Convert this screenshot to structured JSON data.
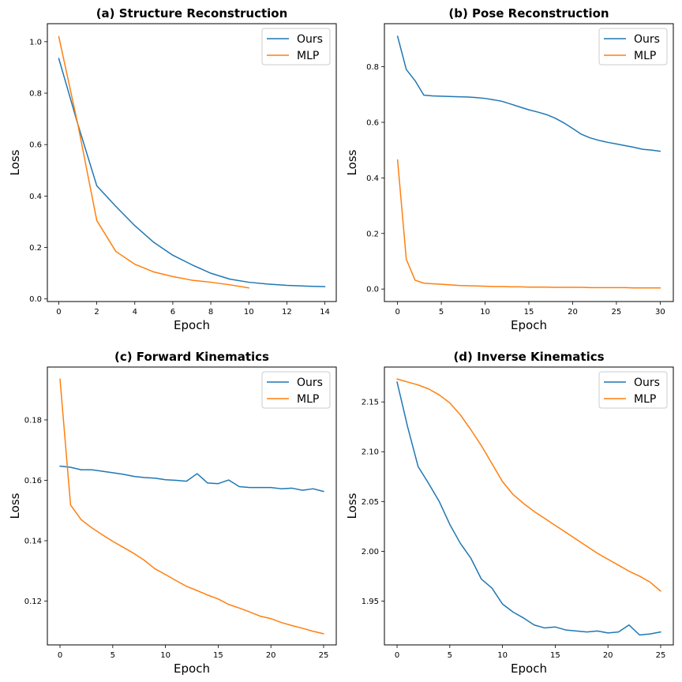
{
  "colors": {
    "ours": "#1f77b4",
    "mlp": "#ff7f0e"
  },
  "chart_data": [
    {
      "type": "line",
      "title": "(a) Structure Reconstruction",
      "xlabel": "Epoch",
      "ylabel": "Loss",
      "xlim": [
        -0.6,
        14.6
      ],
      "ylim": [
        -0.01,
        1.07
      ],
      "xticks": [
        0,
        2,
        4,
        6,
        8,
        10,
        12,
        14
      ],
      "yticks": [
        0.0,
        0.2,
        0.4,
        0.6,
        0.8,
        1.0
      ],
      "ytick_labels": [
        "0.0",
        "0.2",
        "0.4",
        "0.6",
        "0.8",
        "1.0"
      ],
      "legend_position": "top-right",
      "series": [
        {
          "name": "Ours",
          "color_key": "ours",
          "x": [
            0,
            1,
            2,
            3,
            4,
            5,
            6,
            7,
            8,
            9,
            10,
            11,
            12,
            13,
            14
          ],
          "values": [
            0.935,
            0.68,
            0.44,
            0.36,
            0.285,
            0.22,
            0.17,
            0.133,
            0.1,
            0.077,
            0.065,
            0.058,
            0.053,
            0.05,
            0.048
          ]
        },
        {
          "name": "MLP",
          "color_key": "mlp",
          "x": [
            0,
            1,
            2,
            3,
            4,
            5,
            6,
            7,
            8,
            9,
            10
          ],
          "values": [
            1.02,
            0.68,
            0.305,
            0.185,
            0.135,
            0.105,
            0.087,
            0.073,
            0.065,
            0.055,
            0.043
          ]
        }
      ]
    },
    {
      "type": "line",
      "title": "(b) Pose Reconstruction",
      "xlabel": "Epoch",
      "ylabel": "Loss",
      "xlim": [
        -1.5,
        31.5
      ],
      "ylim": [
        -0.045,
        0.955
      ],
      "xticks": [
        0,
        5,
        10,
        15,
        20,
        25,
        30
      ],
      "yticks": [
        0.0,
        0.2,
        0.4,
        0.6,
        0.8
      ],
      "ytick_labels": [
        "0.0",
        "0.2",
        "0.4",
        "0.6",
        "0.8"
      ],
      "legend_position": "top-right",
      "series": [
        {
          "name": "Ours",
          "color_key": "ours",
          "x": [
            0,
            1,
            2,
            3,
            4,
            5,
            6,
            7,
            8,
            9,
            10,
            11,
            12,
            13,
            14,
            15,
            16,
            17,
            18,
            19,
            20,
            21,
            22,
            23,
            24,
            25,
            26,
            27,
            28,
            29,
            30
          ],
          "values": [
            0.91,
            0.79,
            0.75,
            0.698,
            0.695,
            0.694,
            0.693,
            0.692,
            0.691,
            0.689,
            0.686,
            0.681,
            0.675,
            0.665,
            0.655,
            0.645,
            0.637,
            0.628,
            0.615,
            0.598,
            0.578,
            0.557,
            0.544,
            0.535,
            0.528,
            0.522,
            0.516,
            0.51,
            0.503,
            0.5,
            0.496
          ]
        },
        {
          "name": "MLP",
          "color_key": "mlp",
          "x": [
            0,
            1,
            2,
            3,
            4,
            5,
            6,
            7,
            8,
            9,
            10,
            11,
            12,
            13,
            14,
            15,
            16,
            17,
            18,
            19,
            20,
            21,
            22,
            23,
            24,
            25,
            26,
            27,
            28,
            29,
            30
          ],
          "values": [
            0.465,
            0.107,
            0.032,
            0.021,
            0.019,
            0.017,
            0.015,
            0.013,
            0.012,
            0.011,
            0.01,
            0.009,
            0.009,
            0.008,
            0.008,
            0.007,
            0.007,
            0.007,
            0.006,
            0.006,
            0.006,
            0.006,
            0.005,
            0.005,
            0.005,
            0.005,
            0.005,
            0.004,
            0.004,
            0.004,
            0.004
          ]
        }
      ]
    },
    {
      "type": "line",
      "title": "(c) Forward Kinematics",
      "xlabel": "Epoch",
      "ylabel": "Loss",
      "xlim": [
        -1.2,
        26.2
      ],
      "ylim": [
        0.1055,
        0.1975
      ],
      "xticks": [
        0,
        5,
        10,
        15,
        20,
        25
      ],
      "yticks": [
        0.12,
        0.14,
        0.16,
        0.18
      ],
      "ytick_labels": [
        "0.12",
        "0.14",
        "0.16",
        "0.18"
      ],
      "legend_position": "top-right",
      "series": [
        {
          "name": "Ours",
          "color_key": "ours",
          "x": [
            0,
            1,
            2,
            3,
            4,
            5,
            6,
            7,
            8,
            9,
            10,
            11,
            12,
            13,
            14,
            15,
            16,
            17,
            18,
            19,
            20,
            21,
            22,
            23,
            24,
            25
          ],
          "values": [
            0.1647,
            0.1643,
            0.1635,
            0.1635,
            0.163,
            0.1625,
            0.162,
            0.1613,
            0.1609,
            0.1607,
            0.1602,
            0.16,
            0.1597,
            0.1622,
            0.1591,
            0.1589,
            0.1601,
            0.1579,
            0.1576,
            0.1576,
            0.1576,
            0.1572,
            0.1574,
            0.1567,
            0.1572,
            0.1563
          ]
        },
        {
          "name": "MLP",
          "color_key": "mlp",
          "x": [
            0,
            1,
            2,
            3,
            4,
            5,
            6,
            7,
            8,
            9,
            10,
            11,
            12,
            13,
            14,
            15,
            16,
            17,
            18,
            19,
            20,
            21,
            22,
            23,
            24,
            25
          ],
          "values": [
            0.1935,
            0.1518,
            0.147,
            0.1443,
            0.142,
            0.1398,
            0.1378,
            0.1358,
            0.1335,
            0.1307,
            0.1288,
            0.1268,
            0.1249,
            0.1235,
            0.122,
            0.1207,
            0.1189,
            0.1177,
            0.1164,
            0.115,
            0.1142,
            0.1129,
            0.1119,
            0.111,
            0.11,
            0.1092
          ]
        }
      ]
    },
    {
      "type": "line",
      "title": "(d) Inverse Kinematics",
      "xlabel": "Epoch",
      "ylabel": "Loss",
      "xlim": [
        -1.2,
        26.2
      ],
      "ylim": [
        1.906,
        2.185
      ],
      "xticks": [
        0,
        5,
        10,
        15,
        20,
        25
      ],
      "yticks": [
        1.95,
        2.0,
        2.05,
        2.1,
        2.15
      ],
      "ytick_labels": [
        "1.95",
        "2.00",
        "2.05",
        "2.10",
        "2.15"
      ],
      "legend_position": "top-right",
      "series": [
        {
          "name": "Ours",
          "color_key": "ours",
          "x": [
            0,
            1,
            2,
            3,
            4,
            5,
            6,
            7,
            8,
            9,
            10,
            11,
            12,
            13,
            14,
            15,
            16,
            17,
            18,
            19,
            20,
            21,
            22,
            23,
            24,
            25
          ],
          "values": [
            2.17,
            2.125,
            2.085,
            2.068,
            2.05,
            2.027,
            2.008,
            1.993,
            1.972,
            1.963,
            1.947,
            1.939,
            1.933,
            1.926,
            1.923,
            1.924,
            1.921,
            1.92,
            1.919,
            1.92,
            1.918,
            1.919,
            1.926,
            1.916,
            1.917,
            1.919
          ]
        },
        {
          "name": "MLP",
          "color_key": "mlp",
          "x": [
            0,
            1,
            2,
            3,
            4,
            5,
            6,
            7,
            8,
            9,
            10,
            11,
            12,
            13,
            14,
            15,
            16,
            17,
            18,
            19,
            20,
            21,
            22,
            23,
            24,
            25
          ],
          "values": [
            2.173,
            2.17,
            2.167,
            2.163,
            2.157,
            2.149,
            2.137,
            2.122,
            2.106,
            2.088,
            2.07,
            2.057,
            2.048,
            2.04,
            2.033,
            2.026,
            2.019,
            2.012,
            2.005,
            1.998,
            1.992,
            1.986,
            1.98,
            1.975,
            1.969,
            1.96
          ]
        }
      ]
    }
  ]
}
